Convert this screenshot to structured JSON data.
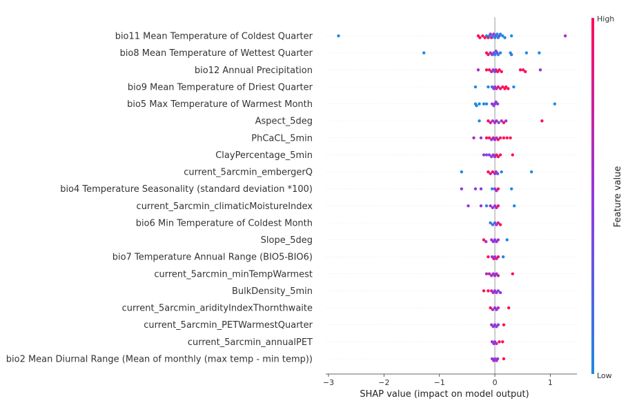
{
  "chart_data": {
    "type": "scatter",
    "subtype": "shap-beeswarm",
    "xlabel": "SHAP value (impact on model output)",
    "xlim": [
      -3.05,
      1.48
    ],
    "xticks": [
      -3,
      -2,
      -1,
      0,
      1
    ],
    "xtick_labels": [
      "−3",
      "−2",
      "−1",
      "0",
      "1"
    ],
    "zero_line": true,
    "colorbar": {
      "label": "Feature value",
      "high_label": "High",
      "low_label": "Low",
      "low_color": "#1E88E5",
      "high_color": "#FF0D57"
    },
    "colors": {
      "low": "#1E88E5",
      "mid": "#9436E0",
      "high": "#FF0D57",
      "zero_line": "#999999"
    },
    "features": [
      {
        "name": "bio11 Mean Temperature of Coldest Quarter",
        "points": [
          [
            -2.82,
            0
          ],
          [
            -0.3,
            1
          ],
          [
            -0.27,
            1
          ],
          [
            -0.22,
            1
          ],
          [
            -0.18,
            1
          ],
          [
            -0.15,
            0
          ],
          [
            -0.12,
            1
          ],
          [
            -0.1,
            0
          ],
          [
            -0.08,
            0.5
          ],
          [
            -0.06,
            1
          ],
          [
            -0.04,
            0
          ],
          [
            -0.02,
            0.5
          ],
          [
            0,
            0
          ],
          [
            0.02,
            0.3
          ],
          [
            0.04,
            0
          ],
          [
            0.06,
            0
          ],
          [
            0.08,
            0.4
          ],
          [
            0.1,
            0
          ],
          [
            0.14,
            0
          ],
          [
            0.18,
            0
          ],
          [
            0.3,
            0
          ],
          [
            1.27,
            0.6
          ]
        ]
      },
      {
        "name": "bio8 Mean Temperature of Wettest Quarter",
        "points": [
          [
            -1.28,
            0
          ],
          [
            -0.15,
            1
          ],
          [
            -0.12,
            1
          ],
          [
            -0.08,
            0.6
          ],
          [
            -0.05,
            0.4
          ],
          [
            -0.02,
            0.5
          ],
          [
            0,
            0
          ],
          [
            0.02,
            0.3
          ],
          [
            0.04,
            0.5
          ],
          [
            0.06,
            0
          ],
          [
            0.1,
            0
          ],
          [
            0.28,
            0
          ],
          [
            0.3,
            0.1
          ],
          [
            0.57,
            0
          ],
          [
            0.8,
            0
          ]
        ]
      },
      {
        "name": "bio12 Annual Precipitation",
        "points": [
          [
            -0.3,
            0.6
          ],
          [
            -0.15,
            1
          ],
          [
            -0.1,
            1
          ],
          [
            -0.06,
            0.8
          ],
          [
            -0.03,
            0.5
          ],
          [
            0,
            0.3
          ],
          [
            0.02,
            0.6
          ],
          [
            0.05,
            1
          ],
          [
            0.08,
            1
          ],
          [
            0.12,
            1
          ],
          [
            0.46,
            1
          ],
          [
            0.51,
            1
          ],
          [
            0.55,
            1
          ],
          [
            0.82,
            0.5
          ]
        ]
      },
      {
        "name": "bio9 Mean Temperature of Driest Quarter",
        "points": [
          [
            -0.35,
            0
          ],
          [
            -0.12,
            0
          ],
          [
            -0.05,
            0.2
          ],
          [
            -0.02,
            0.4
          ],
          [
            0,
            0.5
          ],
          [
            0.03,
            0.7
          ],
          [
            0.06,
            0.8
          ],
          [
            0.1,
            0.9
          ],
          [
            0.14,
            1
          ],
          [
            0.18,
            1
          ],
          [
            0.2,
            1
          ],
          [
            0.24,
            1
          ],
          [
            0.34,
            0
          ]
        ]
      },
      {
        "name": "bio5 Max Temperature of Warmest Month",
        "points": [
          [
            -0.35,
            0
          ],
          [
            -0.33,
            0
          ],
          [
            -0.28,
            0
          ],
          [
            -0.2,
            0
          ],
          [
            -0.15,
            0
          ],
          [
            -0.05,
            0.5
          ],
          [
            -0.02,
            0.3
          ],
          [
            0,
            0.5
          ],
          [
            0.02,
            0.6
          ],
          [
            0.05,
            0.4
          ],
          [
            1.08,
            0
          ]
        ]
      },
      {
        "name": "Aspect_5deg",
        "points": [
          [
            -0.28,
            0
          ],
          [
            -0.12,
            1
          ],
          [
            -0.08,
            0.8
          ],
          [
            -0.04,
            0.5
          ],
          [
            0,
            0.6
          ],
          [
            0.03,
            0.7
          ],
          [
            0.07,
            0.3
          ],
          [
            0.12,
            0.6
          ],
          [
            0.16,
            1
          ],
          [
            0.2,
            0.5
          ],
          [
            0.85,
            1
          ]
        ]
      },
      {
        "name": "PhCaCL_5min",
        "points": [
          [
            -0.38,
            0.6
          ],
          [
            -0.25,
            0.5
          ],
          [
            -0.15,
            1
          ],
          [
            -0.1,
            1
          ],
          [
            -0.06,
            0.5
          ],
          [
            -0.03,
            0.8
          ],
          [
            0,
            0.6
          ],
          [
            0.03,
            0.5
          ],
          [
            0.06,
            1
          ],
          [
            0.1,
            1
          ],
          [
            0.16,
            1
          ],
          [
            0.22,
            1
          ],
          [
            0.28,
            1
          ]
        ]
      },
      {
        "name": "ClayPercentage_5min",
        "points": [
          [
            -0.2,
            0.5
          ],
          [
            -0.15,
            0.4
          ],
          [
            -0.1,
            0.5
          ],
          [
            -0.06,
            0.4
          ],
          [
            -0.03,
            0.5
          ],
          [
            0,
            0.6
          ],
          [
            0.03,
            0.8
          ],
          [
            0.06,
            1
          ],
          [
            0.1,
            1
          ],
          [
            0.32,
            1
          ]
        ]
      },
      {
        "name": "current_5arcmin_embergerQ",
        "points": [
          [
            -0.6,
            0
          ],
          [
            -0.12,
            1
          ],
          [
            -0.08,
            0.8
          ],
          [
            -0.04,
            1
          ],
          [
            0,
            0.5
          ],
          [
            0.02,
            0.6
          ],
          [
            0.05,
            0.4
          ],
          [
            0.12,
            0
          ],
          [
            0.66,
            0
          ]
        ]
      },
      {
        "name": "bio4 Temperature Seasonality (standard deviation *100)",
        "points": [
          [
            -0.6,
            0.5
          ],
          [
            -0.35,
            0.5
          ],
          [
            -0.25,
            0.5
          ],
          [
            -0.05,
            0
          ],
          [
            0,
            0.5
          ],
          [
            0.03,
            0.6
          ],
          [
            0.06,
            1
          ],
          [
            0.3,
            0
          ]
        ]
      },
      {
        "name": "current_5arcmin_climaticMoistureIndex",
        "points": [
          [
            -0.48,
            0.5
          ],
          [
            -0.25,
            0.5
          ],
          [
            -0.15,
            0
          ],
          [
            -0.08,
            0.6
          ],
          [
            -0.04,
            0.5
          ],
          [
            0,
            0.5
          ],
          [
            0.03,
            0.6
          ],
          [
            0.06,
            1
          ],
          [
            0.35,
            0
          ]
        ]
      },
      {
        "name": "bio6 Min Temperature of Coldest Month",
        "points": [
          [
            -0.08,
            0
          ],
          [
            -0.04,
            0.3
          ],
          [
            0,
            0.2
          ],
          [
            0.03,
            0.5
          ],
          [
            0.06,
            0.8
          ],
          [
            0.1,
            1
          ]
        ]
      },
      {
        "name": "Slope_5deg",
        "points": [
          [
            -0.2,
            1
          ],
          [
            -0.16,
            0.6
          ],
          [
            -0.06,
            0.5
          ],
          [
            -0.03,
            0.5
          ],
          [
            0,
            0.5
          ],
          [
            0.03,
            0.5
          ],
          [
            0.06,
            0.6
          ],
          [
            0.22,
            0
          ]
        ]
      },
      {
        "name": "bio7 Temperature Annual Range (BIO5-BIO6)",
        "points": [
          [
            -0.12,
            1
          ],
          [
            -0.05,
            0.5
          ],
          [
            -0.02,
            1
          ],
          [
            0,
            0.5
          ],
          [
            0.03,
            0.6
          ],
          [
            0.06,
            1
          ],
          [
            0.15,
            0
          ]
        ]
      },
      {
        "name": "current_5arcmin_minTempWarmest",
        "points": [
          [
            -0.15,
            0.6
          ],
          [
            -0.1,
            0.7
          ],
          [
            -0.06,
            0.6
          ],
          [
            -0.03,
            0.5
          ],
          [
            0,
            0.6
          ],
          [
            0.03,
            0.6
          ],
          [
            0.06,
            0.7
          ],
          [
            0.32,
            1
          ]
        ]
      },
      {
        "name": "BulkDensity_5min",
        "points": [
          [
            -0.2,
            1
          ],
          [
            -0.12,
            1
          ],
          [
            -0.06,
            0.8
          ],
          [
            -0.03,
            0.6
          ],
          [
            0,
            0.5
          ],
          [
            0.03,
            0.5
          ],
          [
            0.06,
            0.4
          ],
          [
            0.1,
            0.5
          ]
        ]
      },
      {
        "name": "current_5arcmin_aridityIndexThornthwaite",
        "points": [
          [
            -0.08,
            1
          ],
          [
            -0.04,
            0.6
          ],
          [
            0,
            0.5
          ],
          [
            0.03,
            0.5
          ],
          [
            0.06,
            0.6
          ],
          [
            0.25,
            1
          ]
        ]
      },
      {
        "name": "current_5arcmin_PETWarmestQuarter",
        "points": [
          [
            -0.06,
            0.6
          ],
          [
            -0.03,
            0.5
          ],
          [
            0,
            0.5
          ],
          [
            0.03,
            0.4
          ],
          [
            0.06,
            0.5
          ],
          [
            0.16,
            1
          ]
        ]
      },
      {
        "name": "current_5arcmin_annualPET",
        "points": [
          [
            -0.05,
            0.6
          ],
          [
            -0.02,
            0.5
          ],
          [
            0,
            0.5
          ],
          [
            0.03,
            0.6
          ],
          [
            0.08,
            1
          ],
          [
            0.14,
            1
          ]
        ]
      },
      {
        "name": "bio2 Mean Diurnal Range (Mean of monthly (max temp - min temp))",
        "points": [
          [
            -0.05,
            0.5
          ],
          [
            -0.02,
            0.6
          ],
          [
            0,
            0.5
          ],
          [
            0.03,
            0.5
          ],
          [
            0.05,
            0.6
          ],
          [
            0.16,
            1
          ]
        ]
      }
    ]
  }
}
